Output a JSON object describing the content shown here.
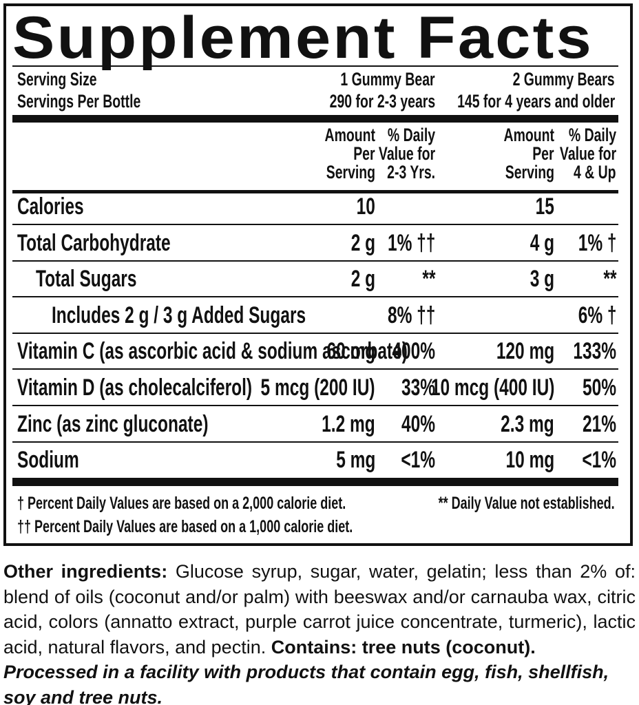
{
  "title": "Supplement Facts",
  "serving": [
    [
      "Serving Size",
      "1 Gummy Bear",
      "2 Gummy Bears"
    ],
    [
      "Servings Per Bottle",
      "290 for 2-3 years",
      "145 for 4 years and older"
    ]
  ],
  "columns": [
    [
      "Amount",
      "Per",
      "Serving"
    ],
    [
      "% Daily",
      "Value for",
      "2-3 Yrs."
    ],
    [
      "Amount",
      "Per",
      "Serving"
    ],
    [
      "% Daily",
      "Value for",
      "4 & Up"
    ]
  ],
  "rows": [
    [
      "Calories",
      "10",
      null,
      "15",
      null
    ],
    [
      "Total Carbohydrate",
      "2 g",
      "1% ††",
      "4 g",
      "1% †"
    ],
    [
      "Total Sugars",
      "2 g",
      "**",
      "3 g",
      "**"
    ],
    [
      "Includes 2 g / 3 g Added Sugars",
      null,
      "8% ††",
      null,
      "6% †"
    ],
    [
      "Vitamin C (as ascorbic acid & sodium ascorbate)",
      "60 mg",
      "400%",
      "120 mg",
      "133%"
    ],
    [
      "Vitamin D (as cholecalciferol)",
      "5 mcg (200 IU)",
      "33%",
      "10 mcg (400 IU)",
      "50%"
    ],
    [
      "Zinc (as zinc gluconate)",
      "1.2 mg",
      "40%",
      "2.3 mg",
      "21%"
    ],
    [
      "Sodium",
      "5 mg",
      "<1%",
      "10 mg",
      "<1%"
    ]
  ],
  "footnotes": [
    "† Percent Daily Values are based on a 2,000 calorie diet.",
    "** Daily Value not established.",
    "†† Percent Daily Values are based on a 1,000 calorie diet."
  ],
  "ingredients": {
    "label": "Other ingredients:",
    "text": "Glucose syrup, sugar, water, gelatin; less than 2% of: blend of oils (coconut and/or palm) with beeswax and/or carnauba wax, citric acid, colors (annatto extract, purple carrot juice concentrate, turmeric), lactic acid, natural flavors, and pectin.",
    "contains": "Contains: tree nuts (coconut)."
  },
  "processed": "Processed in a facility with products that contain egg, fish, shellfish, soy and tree nuts."
}
